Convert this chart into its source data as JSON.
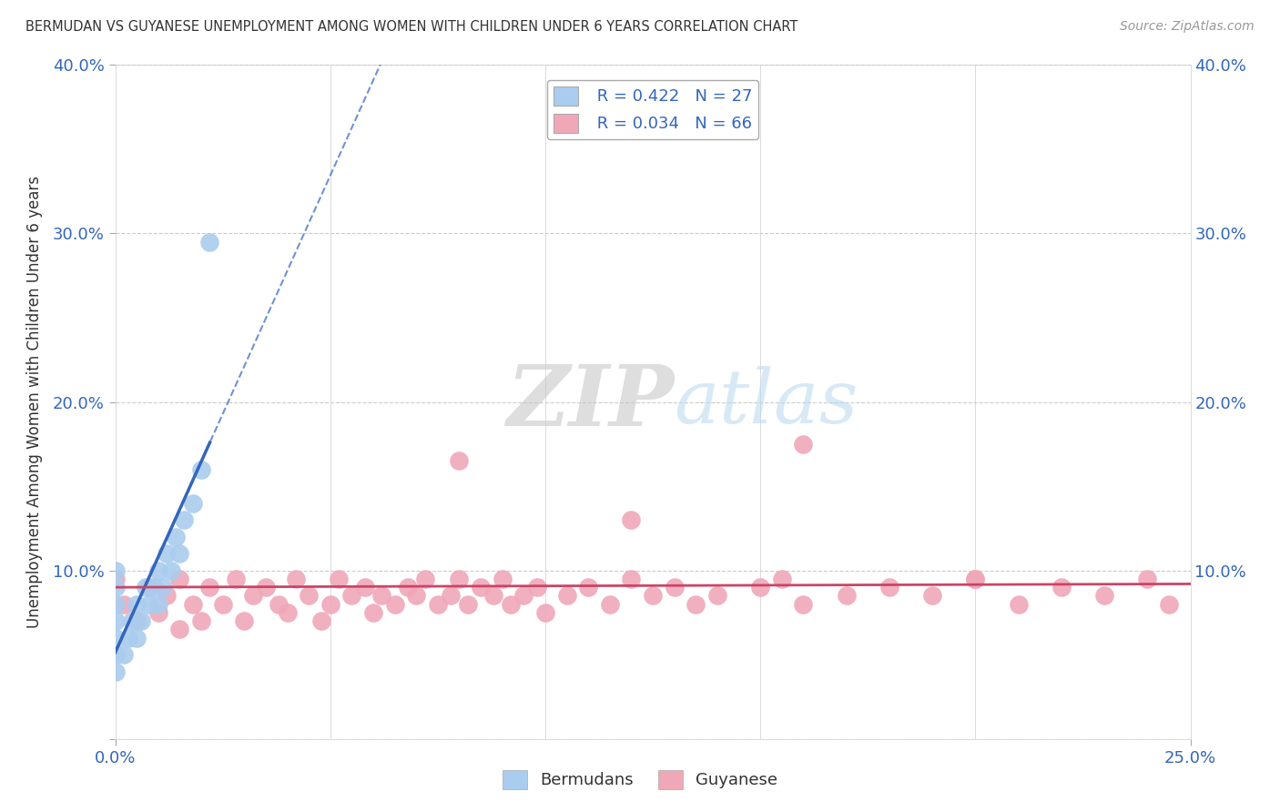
{
  "title": "BERMUDAN VS GUYANESE UNEMPLOYMENT AMONG WOMEN WITH CHILDREN UNDER 6 YEARS CORRELATION CHART",
  "source": "Source: ZipAtlas.com",
  "ylabel": "Unemployment Among Women with Children Under 6 years",
  "xlim": [
    0.0,
    0.25
  ],
  "ylim": [
    0.0,
    0.4
  ],
  "yticks": [
    0.0,
    0.1,
    0.2,
    0.3,
    0.4
  ],
  "yticklabels_left": [
    "",
    "10.0%",
    "20.0%",
    "30.0%",
    "40.0%"
  ],
  "yticklabels_right": [
    "",
    "10.0%",
    "20.0%",
    "30.0%",
    "40.0%"
  ],
  "xtick_left": "0.0%",
  "xtick_right": "25.0%",
  "background_color": "#ffffff",
  "grid_color": "#cccccc",
  "bermudans_color": "#aaccee",
  "guyanese_color": "#f0a8b8",
  "bermudans_line_color": "#3366bb",
  "guyanese_line_color": "#cc4466",
  "legend_R_bermudans": "R = 0.422",
  "legend_N_bermudans": "N = 27",
  "legend_R_guyanese": "R = 0.034",
  "legend_N_guyanese": "N = 66",
  "watermark_zip": "ZIP",
  "watermark_atlas": "atlas",
  "bermudans_x": [
    0.0,
    0.0,
    0.0,
    0.0,
    0.0,
    0.0,
    0.0,
    0.002,
    0.003,
    0.004,
    0.005,
    0.005,
    0.006,
    0.007,
    0.008,
    0.009,
    0.01,
    0.01,
    0.011,
    0.012,
    0.013,
    0.014,
    0.015,
    0.016,
    0.018,
    0.02,
    0.022
  ],
  "bermudans_y": [
    0.04,
    0.05,
    0.06,
    0.07,
    0.08,
    0.09,
    0.1,
    0.05,
    0.06,
    0.07,
    0.06,
    0.08,
    0.07,
    0.09,
    0.08,
    0.09,
    0.08,
    0.1,
    0.09,
    0.11,
    0.1,
    0.12,
    0.11,
    0.13,
    0.14,
    0.16,
    0.295
  ],
  "guyanese_x": [
    0.0,
    0.002,
    0.005,
    0.008,
    0.01,
    0.012,
    0.015,
    0.015,
    0.018,
    0.02,
    0.022,
    0.025,
    0.028,
    0.03,
    0.032,
    0.035,
    0.038,
    0.04,
    0.042,
    0.045,
    0.048,
    0.05,
    0.052,
    0.055,
    0.058,
    0.06,
    0.062,
    0.065,
    0.068,
    0.07,
    0.072,
    0.075,
    0.078,
    0.08,
    0.082,
    0.085,
    0.088,
    0.09,
    0.092,
    0.095,
    0.098,
    0.1,
    0.105,
    0.11,
    0.115,
    0.12,
    0.125,
    0.13,
    0.135,
    0.14,
    0.15,
    0.155,
    0.16,
    0.17,
    0.18,
    0.19,
    0.2,
    0.21,
    0.22,
    0.23,
    0.24,
    0.245,
    0.08,
    0.12,
    0.16,
    0.2
  ],
  "guyanese_y": [
    0.095,
    0.08,
    0.07,
    0.09,
    0.075,
    0.085,
    0.065,
    0.095,
    0.08,
    0.07,
    0.09,
    0.08,
    0.095,
    0.07,
    0.085,
    0.09,
    0.08,
    0.075,
    0.095,
    0.085,
    0.07,
    0.08,
    0.095,
    0.085,
    0.09,
    0.075,
    0.085,
    0.08,
    0.09,
    0.085,
    0.095,
    0.08,
    0.085,
    0.095,
    0.08,
    0.09,
    0.085,
    0.095,
    0.08,
    0.085,
    0.09,
    0.075,
    0.085,
    0.09,
    0.08,
    0.095,
    0.085,
    0.09,
    0.08,
    0.085,
    0.09,
    0.095,
    0.08,
    0.085,
    0.09,
    0.085,
    0.095,
    0.08,
    0.09,
    0.085,
    0.095,
    0.08,
    0.165,
    0.13,
    0.175,
    0.095
  ]
}
